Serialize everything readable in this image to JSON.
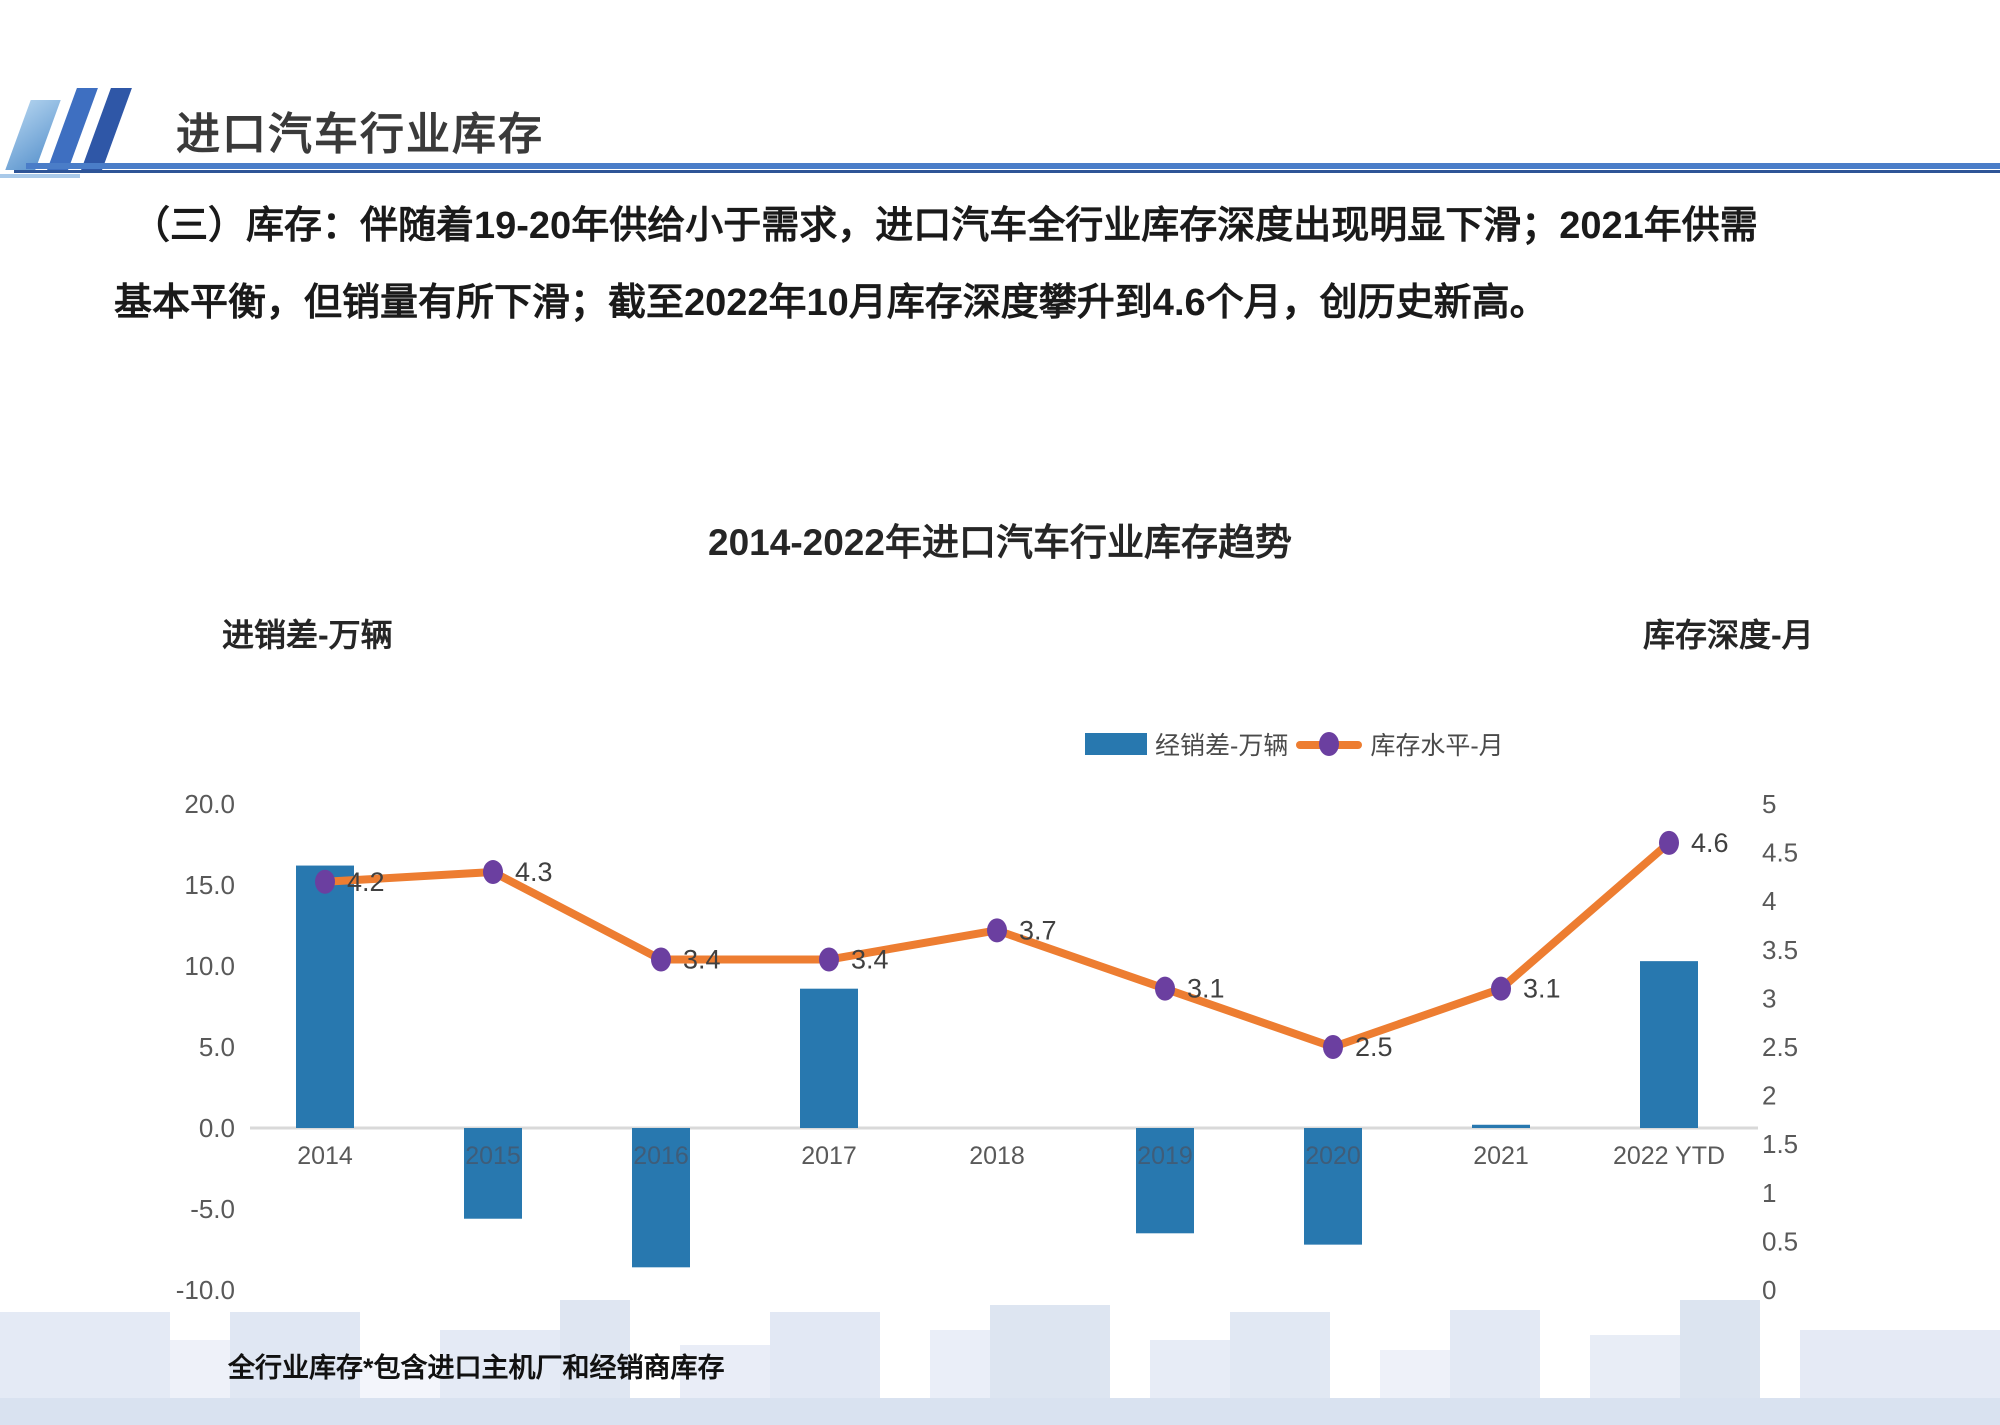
{
  "header": {
    "title": "进口汽车行业库存"
  },
  "intro": {
    "line1": "（三）库存：伴随着19-20年供给小于需求，进口汽车全行业库存深度出现明显下滑；2021年供需",
    "line2": "基本平衡，但销量有所下滑；截至2022年10月库存深度攀升到4.6个月，创历史新高。"
  },
  "chart": {
    "title": "2014-2022年进口汽车行业库存趋势",
    "left_axis_title": "进销差-万辆",
    "right_axis_title": "库存深度-月",
    "legend": {
      "bar_label": "经销差-万辆",
      "line_label": "库存水平-月"
    }
  },
  "chart_data": {
    "type": "bar+line",
    "title": "2014-2022年进口汽车行业库存趋势",
    "categories": [
      "2014",
      "2015",
      "2016",
      "2017",
      "2018",
      "2019",
      "2020",
      "2021",
      "2022 YTD"
    ],
    "series": [
      {
        "name": "经销差-万辆",
        "type": "bar",
        "axis": "left",
        "values": [
          16.2,
          -5.6,
          -8.6,
          8.6,
          0.0,
          -6.5,
          -7.2,
          0.2,
          10.3
        ],
        "values_estimated_from_gridlines": true
      },
      {
        "name": "库存水平-月",
        "type": "line",
        "axis": "right",
        "values": [
          4.2,
          4.3,
          3.4,
          3.4,
          3.7,
          3.1,
          2.5,
          3.1,
          4.6
        ],
        "data_labels": [
          "4.2",
          "4.3",
          "3.4",
          "3.4",
          "3.7",
          "3.1",
          "2.5",
          "3.1",
          "4.6"
        ]
      }
    ],
    "left_axis": {
      "label": "进销差-万辆",
      "range": [
        -10,
        20
      ],
      "step": 5,
      "ticks": [
        "20.0",
        "15.0",
        "10.0",
        "5.0",
        "0.0",
        "-5.0",
        "-10.0"
      ]
    },
    "right_axis": {
      "label": "库存深度-月",
      "range": [
        0,
        5
      ],
      "step": 0.5,
      "ticks": [
        "5",
        "4.5",
        "4",
        "3.5",
        "3",
        "2.5",
        "2",
        "1.5",
        "1",
        "0.5",
        "0"
      ]
    },
    "grid": false,
    "legend_position": "top-center-right",
    "colors": {
      "bar": "#2878AF",
      "line": "#ED7D31",
      "marker": "#6B3FA0",
      "axis_text": "#595959",
      "x_label_on_bar": "#3f5d79",
      "value_label": "#404040",
      "baseline": "#d9d9d9"
    }
  },
  "footnote": "全行业库存*包含进口主机厂和经销商库存"
}
